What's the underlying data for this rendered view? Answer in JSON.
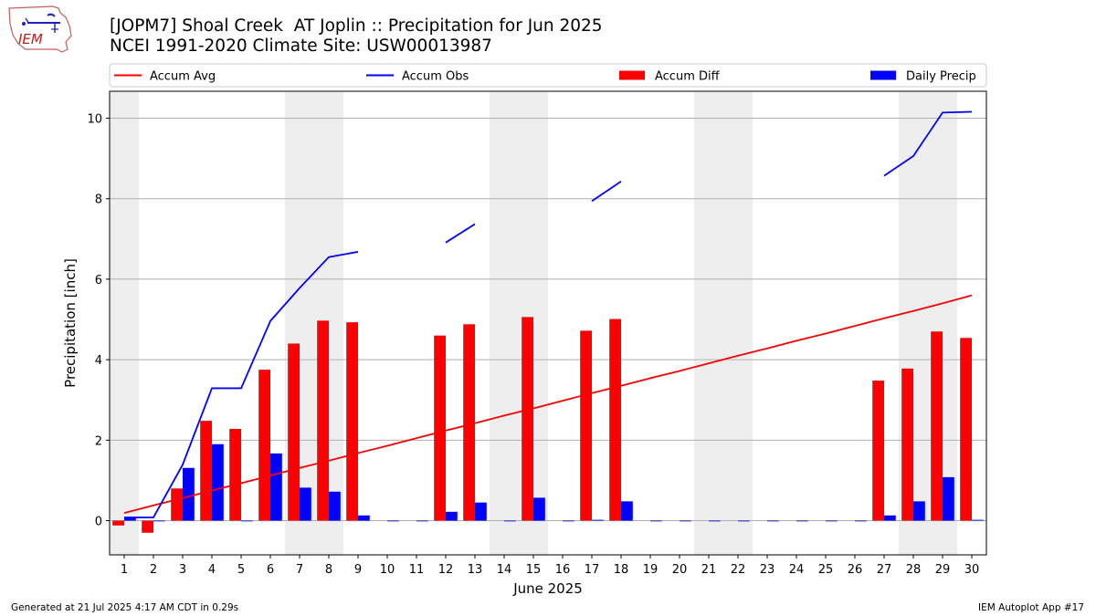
{
  "header": {
    "title_line1": "[JOPM7] Shoal Creek  AT Joplin :: Precipitation for Jun 2025",
    "title_line2": "NCEI 1991-2020 Climate Site: USW00013987"
  },
  "logo": {
    "text": "IEM"
  },
  "footer": {
    "left": "Generated at 21 Jul 2025 4:17 AM CDT in 0.29s",
    "right": "IEM Autoplot App #17"
  },
  "colors": {
    "accum_avg": "#ff0000",
    "accum_obs": "#0000ff",
    "accum_diff": "#ff0000",
    "daily_precip": "#0000ff",
    "weekend_shade": "#eeeeee",
    "grid": "#b0b0b0"
  },
  "chart_data": {
    "type": "bar",
    "title": "[JOPM7] Shoal Creek  AT Joplin :: Precipitation for Jun 2025",
    "subtitle": "NCEI 1991-2020 Climate Site: USW00013987",
    "xlabel": "June 2025",
    "ylabel": "Precipitation [inch]",
    "ylim": [
      -0.85,
      10.67
    ],
    "yticks": [
      0,
      2,
      4,
      6,
      8,
      10
    ],
    "grid": true,
    "legend_position": "top",
    "x": [
      1,
      2,
      3,
      4,
      5,
      6,
      7,
      8,
      9,
      10,
      11,
      12,
      13,
      14,
      15,
      16,
      17,
      18,
      19,
      20,
      21,
      22,
      23,
      24,
      25,
      26,
      27,
      28,
      29,
      30
    ],
    "shaded_days": [
      1,
      7,
      8,
      14,
      15,
      21,
      22,
      28,
      29
    ],
    "legend": [
      {
        "label": "Accum Avg",
        "kind": "line",
        "color": "#ff0000"
      },
      {
        "label": "Accum Obs",
        "kind": "line",
        "color": "#0000ff"
      },
      {
        "label": "Accum Diff",
        "kind": "bar",
        "color": "#ff0000"
      },
      {
        "label": "Daily Precip",
        "kind": "bar",
        "color": "#0000ff"
      }
    ],
    "series": [
      {
        "name": "Accum Avg",
        "type": "line",
        "color": "#ff0000",
        "values": [
          0.19,
          0.38,
          0.56,
          0.75,
          0.93,
          1.12,
          1.31,
          1.49,
          1.68,
          1.86,
          2.05,
          2.24,
          2.42,
          2.61,
          2.79,
          2.98,
          3.17,
          3.35,
          3.54,
          3.72,
          3.91,
          4.1,
          4.28,
          4.47,
          4.65,
          4.84,
          5.03,
          5.21,
          5.4,
          5.6
        ]
      },
      {
        "name": "Accum Obs",
        "type": "line",
        "color": "#0000ff",
        "values": [
          0.08,
          0.08,
          1.39,
          3.29,
          3.29,
          4.96,
          5.78,
          6.55,
          6.68,
          null,
          null,
          6.91,
          7.37,
          null,
          null,
          null,
          7.94,
          8.43,
          null,
          null,
          null,
          null,
          null,
          null,
          null,
          null,
          8.57,
          9.06,
          10.14,
          10.16
        ]
      },
      {
        "name": "Accum Diff",
        "type": "bar",
        "color": "#ff0000",
        "values": [
          -0.12,
          -0.3,
          0.8,
          2.48,
          2.28,
          3.75,
          4.4,
          4.97,
          4.93,
          null,
          null,
          4.6,
          4.88,
          null,
          5.06,
          null,
          4.72,
          5.01,
          null,
          null,
          null,
          null,
          null,
          null,
          null,
          null,
          3.48,
          3.78,
          4.7,
          4.54
        ]
      },
      {
        "name": "Daily Precip",
        "type": "bar",
        "color": "#0000ff",
        "values": [
          0.08,
          0,
          1.31,
          1.9,
          0,
          1.67,
          0.82,
          0.72,
          0.13,
          0,
          0,
          0.22,
          0.45,
          0,
          0.57,
          0,
          0.02,
          0.48,
          0,
          0,
          0,
          0,
          0,
          0,
          0,
          0,
          0.13,
          0.48,
          1.08,
          0.02
        ]
      }
    ]
  }
}
